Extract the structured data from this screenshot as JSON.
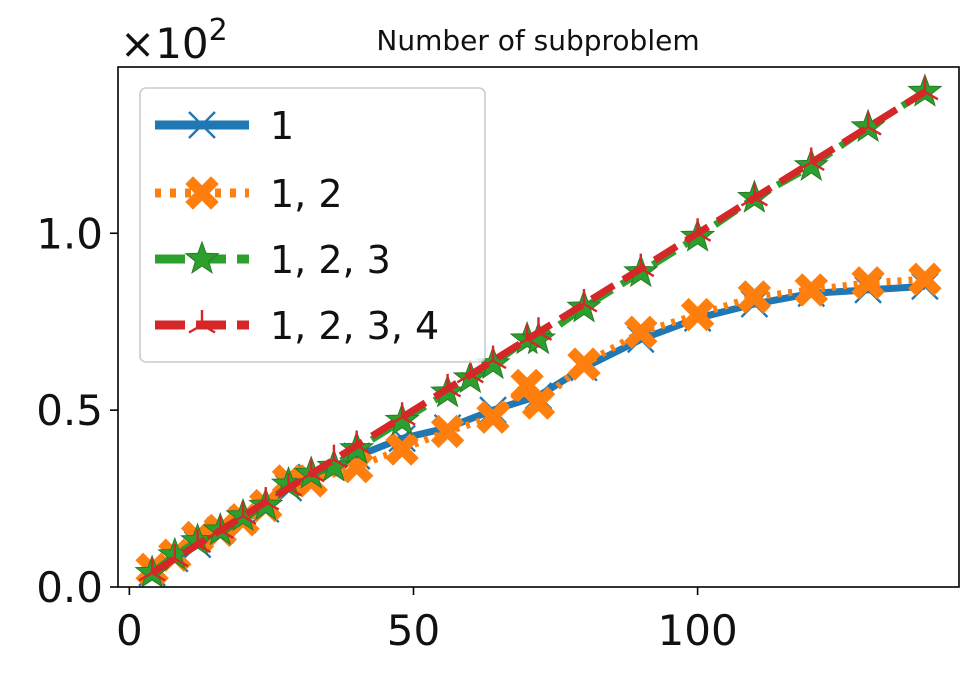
{
  "chart_data": {
    "type": "line",
    "title": "Number of subproblem",
    "xlabel": "",
    "ylabel": "",
    "y_scale_prefix": "×10",
    "y_scale_exponent": "2",
    "xlim": [
      -2,
      146
    ],
    "ylim": [
      0,
      1.47
    ],
    "xticks": [
      0,
      50,
      100
    ],
    "xtick_labels": [
      "0",
      "50",
      "100"
    ],
    "yticks": [
      0,
      0.5,
      1.0
    ],
    "ytick_labels": [
      "0.0",
      "0.5",
      "1.0"
    ],
    "grid": false,
    "legend_position": "top-left",
    "series": [
      {
        "name": "1",
        "color": "#1f77b4",
        "linestyle": "solid",
        "marker": "x",
        "x": [
          4,
          8,
          12,
          16,
          20,
          24,
          28,
          32,
          40,
          48,
          56,
          64,
          72,
          80,
          90,
          100,
          110,
          120,
          130,
          140
        ],
        "y": [
          0.04,
          0.08,
          0.12,
          0.16,
          0.19,
          0.22,
          0.28,
          0.31,
          0.37,
          0.42,
          0.45,
          0.5,
          0.54,
          0.62,
          0.7,
          0.76,
          0.8,
          0.83,
          0.84,
          0.85
        ]
      },
      {
        "name": "1, 2",
        "color": "#ff7f0e",
        "linestyle": "dotted",
        "marker": "X",
        "x": [
          4,
          8,
          12,
          16,
          20,
          24,
          28,
          32,
          40,
          48,
          56,
          64,
          70,
          72,
          80,
          90,
          100,
          110,
          120,
          130,
          140
        ],
        "y": [
          0.05,
          0.09,
          0.14,
          0.16,
          0.19,
          0.23,
          0.3,
          0.3,
          0.34,
          0.39,
          0.44,
          0.48,
          0.57,
          0.52,
          0.63,
          0.72,
          0.77,
          0.82,
          0.84,
          0.86,
          0.87
        ]
      },
      {
        "name": "1, 2, 3",
        "color": "#2ca02c",
        "linestyle": "dashed",
        "marker": "star",
        "x": [
          4,
          8,
          12,
          16,
          20,
          24,
          28,
          32,
          36,
          40,
          48,
          56,
          60,
          64,
          70,
          72,
          80,
          90,
          100,
          110,
          120,
          130,
          140
        ],
        "y": [
          0.04,
          0.09,
          0.13,
          0.16,
          0.2,
          0.23,
          0.29,
          0.32,
          0.34,
          0.39,
          0.47,
          0.55,
          0.59,
          0.63,
          0.7,
          0.7,
          0.79,
          0.89,
          0.99,
          1.1,
          1.19,
          1.3,
          1.4
        ]
      },
      {
        "name": "1, 2, 3, 4",
        "color": "#d62728",
        "linestyle": "dashed",
        "marker": "tri",
        "x": [
          4,
          8,
          12,
          16,
          20,
          24,
          28,
          32,
          36,
          40,
          48,
          56,
          60,
          64,
          70,
          72,
          80,
          90,
          100,
          110,
          120,
          130,
          140
        ],
        "y": [
          0.04,
          0.08,
          0.12,
          0.16,
          0.2,
          0.24,
          0.28,
          0.32,
          0.36,
          0.4,
          0.48,
          0.56,
          0.6,
          0.64,
          0.7,
          0.72,
          0.8,
          0.9,
          1.0,
          1.1,
          1.2,
          1.3,
          1.4
        ]
      }
    ]
  }
}
